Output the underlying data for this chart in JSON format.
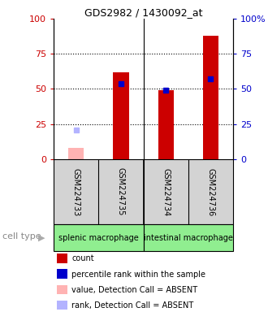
{
  "title": "GDS2982 / 1430092_at",
  "samples": [
    "GSM224733",
    "GSM224735",
    "GSM224734",
    "GSM224736"
  ],
  "cell_types": [
    "splenic macrophage",
    "intestinal macrophage"
  ],
  "bar_values": [
    null,
    62,
    49,
    88
  ],
  "absent_bar_values": [
    8,
    null,
    null,
    null
  ],
  "rank_values": [
    null,
    54,
    49,
    57
  ],
  "rank_absent_values": [
    21,
    null,
    null,
    null
  ],
  "bar_color": "#cc0000",
  "absent_bar_color": "#ffb3b3",
  "rank_color": "#0000cc",
  "rank_absent_color": "#b3b3ff",
  "ylim": [
    0,
    100
  ],
  "yticks": [
    0,
    25,
    50,
    75,
    100
  ],
  "bar_width": 0.35,
  "bg_sample_box": "#d3d3d3",
  "bg_cell_type": "#90ee90",
  "left_axis_color": "#cc0000",
  "right_axis_color": "#0000cc",
  "legend_items": [
    {
      "color": "#cc0000",
      "label": "count"
    },
    {
      "color": "#0000cc",
      "label": "percentile rank within the sample"
    },
    {
      "color": "#ffb3b3",
      "label": "value, Detection Call = ABSENT"
    },
    {
      "color": "#b3b3ff",
      "label": "rank, Detection Call = ABSENT"
    }
  ],
  "cell_type_label": "cell type"
}
